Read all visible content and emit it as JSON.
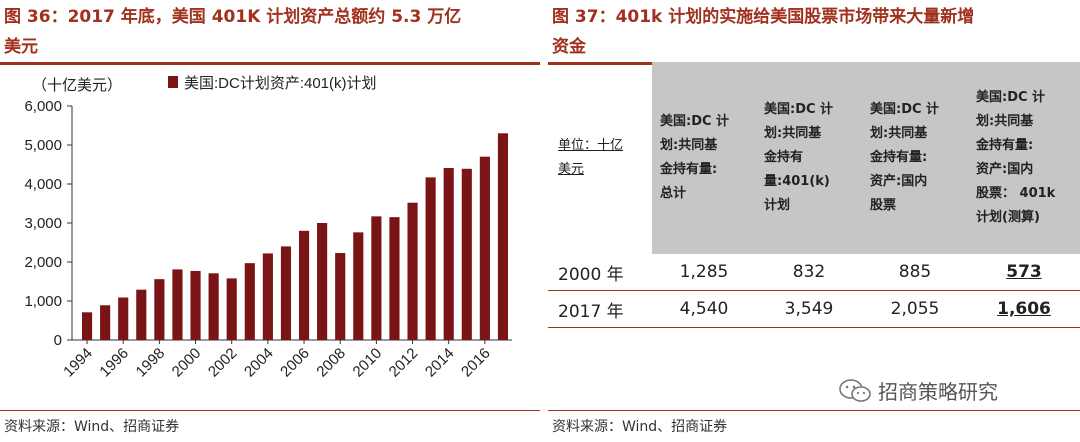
{
  "left": {
    "title_line1": "图 36：2017 年底，美国 401K 计划资产总额约 5.3 万亿",
    "title_line2": "美元",
    "source": "资料来源：Wind、招商证券"
  },
  "chart_data": {
    "type": "bar",
    "unit_label": "（十亿美元）",
    "series": [
      {
        "name": "美国:DC计划资产:401(k)计划",
        "color": "#7b1416",
        "values": [
          710,
          890,
          1090,
          1290,
          1560,
          1810,
          1770,
          1710,
          1580,
          1970,
          2220,
          2400,
          2800,
          3000,
          2230,
          2760,
          3170,
          3150,
          3520,
          4170,
          4410,
          4390,
          4700,
          5300
        ]
      }
    ],
    "years": [
      1994,
      1995,
      1996,
      1997,
      1998,
      1999,
      2000,
      2001,
      2002,
      2003,
      2004,
      2005,
      2006,
      2007,
      2008,
      2009,
      2010,
      2011,
      2012,
      2013,
      2014,
      2015,
      2016,
      2017
    ],
    "x_tick_labels": [
      "1994",
      "1996",
      "1998",
      "2000",
      "2002",
      "2004",
      "2006",
      "2008",
      "2010",
      "2012",
      "2014",
      "2016"
    ],
    "y_tick_labels": [
      "0",
      "1,000",
      "2,000",
      "3,000",
      "4,000",
      "5,000",
      "6,000"
    ],
    "ylim": [
      0,
      6000
    ],
    "grid": false,
    "legend_position": "top"
  },
  "right": {
    "title_line1": "图 37：401k 计划的实施给美国股票市场带来大量新增",
    "title_line2": "资金",
    "source": "资料来源：Wind、招商证券",
    "table": {
      "unit_lines": [
        "单位：十亿",
        "美元"
      ],
      "headers": [
        [
          "美国:DC 计",
          "划:共同基",
          "金持有量:",
          "总计"
        ],
        [
          "美国:DC 计",
          "划:共同基",
          "金持有",
          "量:401(k)",
          "计划"
        ],
        [
          "美国:DC 计",
          "划:共同基",
          "金持有量:",
          "资产:国内",
          "股票"
        ],
        [
          "美国:DC 计",
          "划:共同基",
          "金持有量:",
          "资产:国内",
          "股票： 401k",
          "计划(测算)"
        ]
      ],
      "rows": [
        {
          "year": "2000 年",
          "c1": "1,285",
          "c2": "832",
          "c3": "885",
          "c4": "573"
        },
        {
          "year": "2017 年",
          "c1": "4,540",
          "c2": "3,549",
          "c3": "2,055",
          "c4": "1,606"
        }
      ]
    },
    "watermark": "招商策略研究"
  }
}
